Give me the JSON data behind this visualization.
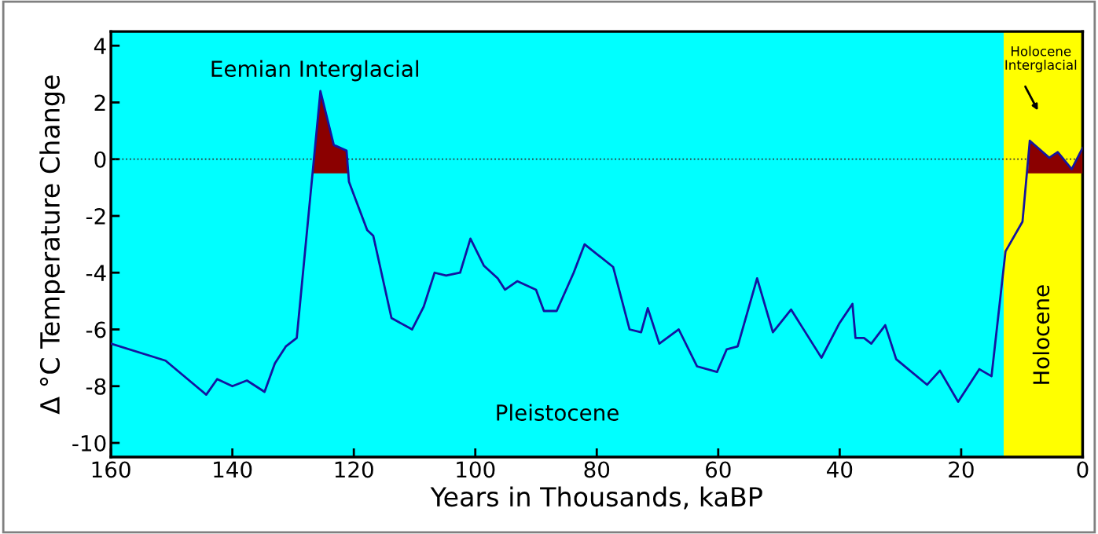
{
  "chart_data": {
    "type": "line",
    "xlabel": "Years in Thousands, kaBP",
    "ylabel": "Δ °C Temperature Change",
    "xlim": [
      160,
      0
    ],
    "xticks": [
      160,
      140,
      120,
      100,
      80,
      60,
      40,
      20,
      0
    ],
    "ylim": [
      -10.5,
      4.5
    ],
    "yticks": [
      4,
      2,
      0,
      -2,
      -4,
      -6,
      -8,
      -10
    ],
    "grid": false,
    "marker": "none",
    "line_style": "solid",
    "series": [
      {
        "type": "line",
        "color": "#1414a0",
        "x": [
          160,
          151,
          144.3,
          142.5,
          140,
          137.6,
          134.7,
          133,
          131.2,
          129.4,
          126.8,
          125.5,
          123.3,
          121.2,
          120.8,
          117.8,
          116.8,
          113.8,
          110.4,
          108.5,
          106.7,
          104.8,
          102.5,
          100.8,
          98.6,
          96.3,
          95.1,
          93.1,
          90,
          88.7,
          86.6,
          83.8,
          82,
          77.3,
          74.6,
          72.7,
          71.6,
          69.7,
          66.5,
          63.5,
          60.2,
          58.6,
          56.8,
          53.6,
          51,
          48,
          43,
          40.1,
          37.9,
          37.4,
          36,
          34.8,
          32.5,
          30.7,
          25.6,
          23.5,
          20.5,
          17,
          15,
          12.7,
          9.9,
          8.7,
          5.5,
          4.1,
          1.8,
          0
        ],
        "values": [
          -6.5,
          -7.1,
          -8.3,
          -7.75,
          -8.0,
          -7.8,
          -8.2,
          -7.2,
          -6.6,
          -6.3,
          -0.5,
          2.4,
          0.5,
          0.3,
          -0.8,
          -2.5,
          -2.7,
          -5.6,
          -6.0,
          -5.2,
          -4.0,
          -4.1,
          -4.0,
          -2.8,
          -3.75,
          -4.2,
          -4.6,
          -4.3,
          -4.6,
          -5.35,
          -5.35,
          -4.0,
          -3.0,
          -3.8,
          -6.0,
          -6.1,
          -5.25,
          -6.5,
          -6.0,
          -7.3,
          -7.5,
          -6.7,
          -6.6,
          -4.2,
          -6.1,
          -5.3,
          -7.0,
          -5.8,
          -5.1,
          -6.3,
          -6.3,
          -6.5,
          -5.85,
          -7.05,
          -7.95,
          -7.45,
          -8.55,
          -7.4,
          -7.65,
          -3.25,
          -2.2,
          0.65,
          0.05,
          0.25,
          -0.35,
          0.4
        ]
      },
      {
        "type": "area",
        "color": "#8b0000",
        "x": [
          126.8,
          125.5,
          123.3,
          121.2,
          121.0
        ],
        "values": [
          -0.5,
          2.4,
          0.5,
          0.3,
          -0.5
        ]
      },
      {
        "type": "area",
        "color": "#8b0000",
        "x": [
          9.0,
          8.7,
          5.5,
          4.1,
          1.8,
          0,
          0
        ],
        "values": [
          -0.5,
          0.65,
          0.05,
          0.25,
          -0.35,
          0.4,
          -0.5
        ]
      }
    ],
    "bands": [
      {
        "axis": "x",
        "from": 160,
        "to": 13,
        "label": "Pleistocene",
        "color": "#00ffff"
      },
      {
        "axis": "x",
        "from": 13,
        "to": 0,
        "label": "Holocene",
        "color": "#ffff00"
      }
    ],
    "ref_lines": [
      {
        "axis": "y",
        "value": 0,
        "color": "#303030",
        "line_style": "dotted"
      }
    ],
    "annotations": [
      "Eemian Interglacial",
      "Holocene\nInterglacial"
    ]
  }
}
